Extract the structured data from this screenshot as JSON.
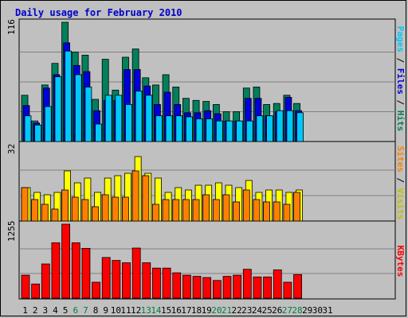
{
  "title": "Daily usage for February 2010",
  "colors": {
    "hits": "#00805c",
    "files": "#0000d8",
    "pages": "#00c8f8",
    "visits": "#ffff00",
    "sites": "#ff8000",
    "kbytes": "#ff0000",
    "weekend": "#008040",
    "weekday": "#000000",
    "title": "#0000cc"
  },
  "chart_data": [
    {
      "type": "bar",
      "name": "hits-files-pages",
      "ymax_label": "116",
      "ylim": [
        0,
        116
      ],
      "categories": [
        "1",
        "2",
        "3",
        "4",
        "5",
        "6",
        "7",
        "8",
        "9",
        "10",
        "11",
        "12",
        "13",
        "14",
        "15",
        "16",
        "17",
        "18",
        "19",
        "20",
        "21",
        "22",
        "23",
        "24",
        "25",
        "26",
        "27",
        "28"
      ],
      "legend": [
        "Pages",
        "Files",
        "Hits"
      ],
      "series": [
        {
          "name": "Hits",
          "values": [
            45,
            20,
            55,
            76,
            116,
            87,
            84,
            41,
            80,
            50,
            82,
            90,
            62,
            55,
            65,
            53,
            42,
            40,
            39,
            36,
            29,
            29,
            52,
            53,
            36,
            37,
            45,
            37
          ]
        },
        {
          "name": "Files",
          "values": [
            35,
            18,
            52,
            65,
            96,
            74,
            68,
            30,
            40,
            40,
            70,
            70,
            54,
            36,
            48,
            36,
            28,
            28,
            30,
            27,
            20,
            20,
            42,
            42,
            25,
            29,
            43,
            30
          ]
        },
        {
          "name": "Pages",
          "values": [
            25,
            16,
            34,
            63,
            88,
            65,
            53,
            17,
            45,
            45,
            36,
            49,
            45,
            25,
            25,
            25,
            24,
            22,
            22,
            20,
            20,
            20,
            20,
            25,
            25,
            30,
            30,
            28
          ]
        }
      ]
    },
    {
      "type": "bar",
      "name": "visits-sites",
      "ymax_label": "32",
      "ylim": [
        0,
        32
      ],
      "categories": [
        "1",
        "2",
        "3",
        "4",
        "5",
        "6",
        "7",
        "8",
        "9",
        "10",
        "11",
        "12",
        "13",
        "14",
        "15",
        "16",
        "17",
        "18",
        "19",
        "20",
        "21",
        "22",
        "23",
        "24",
        "25",
        "26",
        "27",
        "28"
      ],
      "legend": [
        "Sites",
        "Visits"
      ],
      "series": [
        {
          "name": "Visits",
          "values": [
            14,
            12,
            11,
            12,
            21,
            16,
            18,
            12,
            18,
            19,
            20,
            27,
            20,
            18,
            12,
            14,
            13,
            15,
            15,
            16,
            15,
            14,
            17,
            12,
            13,
            13,
            12,
            13
          ]
        },
        {
          "name": "Sites",
          "values": [
            14,
            9,
            7,
            5,
            13,
            10,
            9,
            6,
            11,
            10,
            10,
            21,
            19,
            7,
            9,
            9,
            9,
            9,
            11,
            9,
            11,
            8,
            13,
            9,
            8,
            8,
            7,
            12
          ]
        }
      ]
    },
    {
      "type": "bar",
      "name": "kbytes",
      "ymax_label": "1255",
      "ylim": [
        0,
        1255
      ],
      "categories": [
        "1",
        "2",
        "3",
        "4",
        "5",
        "6",
        "7",
        "8",
        "9",
        "10",
        "11",
        "12",
        "13",
        "14",
        "15",
        "16",
        "17",
        "18",
        "19",
        "20",
        "21",
        "22",
        "23",
        "24",
        "25",
        "26",
        "27",
        "28"
      ],
      "legend": [
        "KBytes"
      ],
      "series": [
        {
          "name": "KBytes",
          "values": [
            390,
            240,
            580,
            940,
            1255,
            940,
            845,
            270,
            690,
            640,
            600,
            850,
            600,
            510,
            510,
            430,
            390,
            370,
            350,
            300,
            370,
            390,
            490,
            360,
            360,
            480,
            270,
            400
          ]
        }
      ]
    }
  ],
  "days": [
    "1",
    "2",
    "3",
    "4",
    "5",
    "6",
    "7",
    "8",
    "9",
    "10",
    "11",
    "12",
    "13",
    "14",
    "15",
    "16",
    "17",
    "18",
    "19",
    "20",
    "21",
    "22",
    "23",
    "24",
    "25",
    "26",
    "27",
    "28",
    "29",
    "30",
    "31"
  ],
  "weekend_days": [
    6,
    7,
    13,
    14,
    20,
    21,
    27,
    28
  ]
}
